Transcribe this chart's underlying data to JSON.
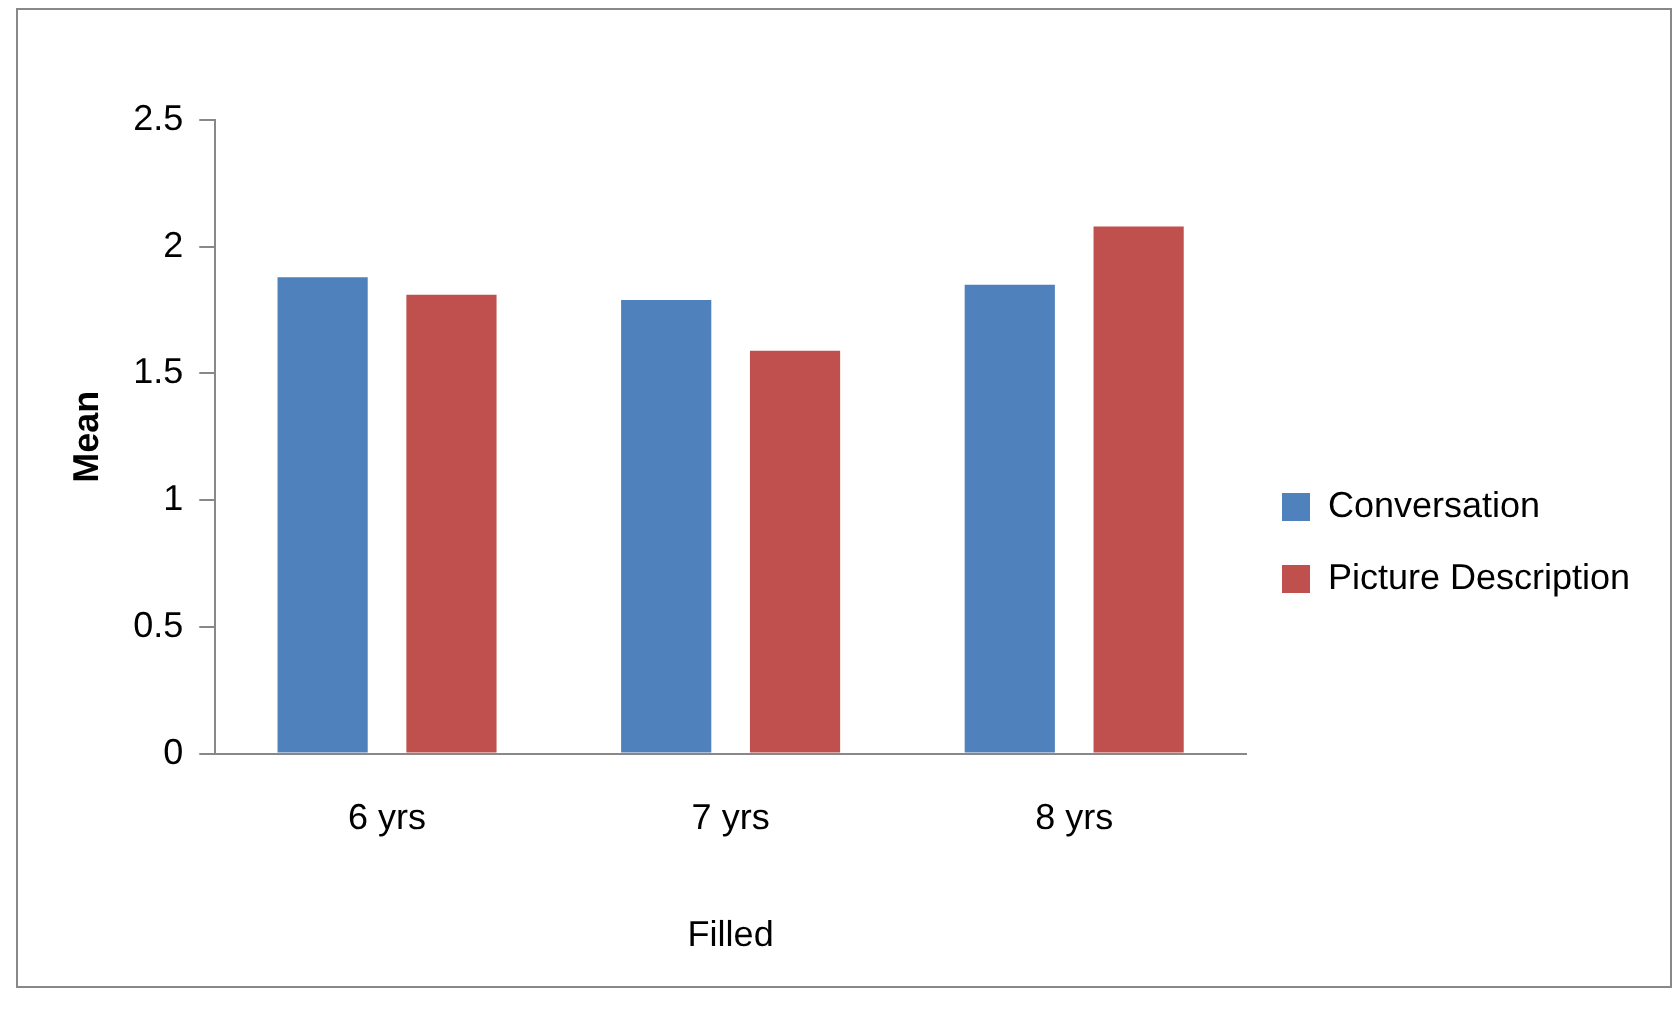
{
  "chart_data": {
    "type": "bar",
    "ylabel": "Mean",
    "xlabel": "Filled",
    "categories": [
      "6 yrs",
      "7 yrs",
      "8 yrs"
    ],
    "series": [
      {
        "name": "Conversation",
        "color": "#4f81bd",
        "values": [
          1.88,
          1.79,
          1.85
        ]
      },
      {
        "name": "Picture Description",
        "color": "#c0504d",
        "values": [
          1.81,
          1.59,
          2.08
        ]
      }
    ],
    "ylim": [
      0,
      2.5
    ],
    "yticks": [
      0,
      0.5,
      1,
      1.5,
      2,
      2.5
    ],
    "grid": false,
    "legend": "right"
  }
}
